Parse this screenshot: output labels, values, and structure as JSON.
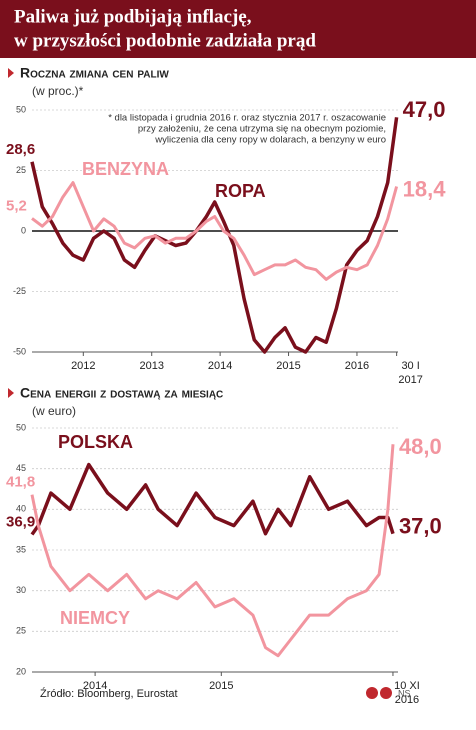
{
  "header": {
    "title": [
      "Paliwa już podbijają inflację,",
      "w przyszłości podobnie zadziała prąd"
    ]
  },
  "chart_data": [
    {
      "type": "line",
      "title": "Roczna zmiana cen paliw",
      "subtitle": "(w proc.)*",
      "note": [
        "* dla listopada i grudnia 2016 r. oraz stycznia 2017 r. oszacowanie",
        "przy założeniu, że cena utrzyma się na obecnym poziomie,",
        "wyliczenia dla ceny ropy w dolarach, a benzyny w euro"
      ],
      "x": [
        2011.75,
        2011.9,
        2012.05,
        2012.2,
        2012.35,
        2012.5,
        2012.65,
        2012.8,
        2012.95,
        2013.1,
        2013.25,
        2013.4,
        2013.55,
        2013.7,
        2013.85,
        2014.0,
        2014.15,
        2014.3,
        2014.42,
        2014.55,
        2014.7,
        2014.85,
        2015.0,
        2015.15,
        2015.3,
        2015.45,
        2015.6,
        2015.75,
        2015.9,
        2016.05,
        2016.2,
        2016.35,
        2016.5,
        2016.65,
        2016.8,
        2016.95,
        2017.08
      ],
      "xlim": [
        2011.75,
        2017.1
      ],
      "xticks": [
        {
          "value": 2012.5,
          "label": "2012"
        },
        {
          "value": 2013.5,
          "label": "2013"
        },
        {
          "value": 2014.5,
          "label": "2014"
        },
        {
          "value": 2015.5,
          "label": "2015"
        },
        {
          "value": 2016.5,
          "label": "2016"
        },
        {
          "value": 2017.08,
          "label": "30 I\n2017"
        }
      ],
      "ylim": [
        -50,
        50
      ],
      "yticks": [
        -50,
        -25,
        0,
        25,
        50
      ],
      "grid": true,
      "series": [
        {
          "name": "ROPA",
          "color": "#7a0f1c",
          "values": [
            28.6,
            10,
            3,
            -5,
            -10,
            -12,
            -3,
            0,
            -3,
            -12,
            -15,
            -8,
            -2,
            -4,
            -6,
            -5,
            0,
            6,
            12,
            4,
            -6,
            -28,
            -45,
            -50,
            -44,
            -40,
            -48,
            -50,
            -44,
            -46,
            -32,
            -14,
            -8,
            -4,
            6,
            20,
            47
          ],
          "value_labels": [
            "28,6",
            null,
            null,
            null,
            null,
            null,
            null,
            null,
            null,
            null,
            null,
            null,
            null,
            null,
            null,
            null,
            null,
            null,
            null,
            null,
            null,
            null,
            null,
            null,
            null,
            null,
            null,
            null,
            null,
            null,
            null,
            null,
            null,
            null,
            null,
            null,
            "47,0"
          ]
        },
        {
          "name": "BENZYNA",
          "color": "#f2959f",
          "values": [
            5.2,
            2,
            6,
            14,
            20,
            10,
            0,
            5,
            2,
            -5,
            -7,
            -3,
            -2,
            -5,
            -3,
            -3,
            0,
            4,
            6,
            0,
            -3,
            -10,
            -18,
            -16,
            -14,
            -14,
            -12,
            -15,
            -16,
            -20,
            -17,
            -15,
            -16,
            -14,
            -6,
            5,
            18.4
          ],
          "value_labels": [
            "5,2",
            null,
            null,
            null,
            null,
            null,
            null,
            null,
            null,
            null,
            null,
            null,
            null,
            null,
            null,
            null,
            null,
            null,
            null,
            null,
            null,
            null,
            null,
            null,
            null,
            null,
            null,
            null,
            null,
            null,
            null,
            null,
            null,
            null,
            null,
            null,
            "18,4"
          ]
        }
      ]
    },
    {
      "type": "line",
      "title": "Cena energii z dostawą za miesiąc",
      "subtitle": "(w euro)",
      "x": [
        2014.0,
        2014.05,
        2014.15,
        2014.3,
        2014.45,
        2014.6,
        2014.75,
        2014.9,
        2015.0,
        2015.15,
        2015.3,
        2015.45,
        2015.6,
        2015.75,
        2015.85,
        2015.95,
        2016.05,
        2016.2,
        2016.35,
        2016.5,
        2016.65,
        2016.75,
        2016.82,
        2016.86
      ],
      "xlim": [
        2014.0,
        2016.9
      ],
      "xticks": [
        {
          "value": 2014.5,
          "label": "2014"
        },
        {
          "value": 2015.5,
          "label": "2015"
        },
        {
          "value": 2016.86,
          "label": "10 XI\n2016"
        }
      ],
      "ylim": [
        20,
        50
      ],
      "yticks": [
        20,
        25,
        30,
        35,
        40,
        45,
        50
      ],
      "grid": true,
      "series": [
        {
          "name": "POLSKA",
          "color": "#7a0f1c",
          "values": [
            36.9,
            38,
            42,
            40,
            45.5,
            42,
            40,
            43,
            40,
            38,
            42,
            39,
            38,
            41,
            37,
            40,
            38,
            44,
            40,
            41,
            38,
            39,
            39,
            37
          ],
          "value_labels": [
            "36,9",
            null,
            null,
            null,
            null,
            null,
            null,
            null,
            null,
            null,
            null,
            null,
            null,
            null,
            null,
            null,
            null,
            null,
            null,
            null,
            null,
            null,
            null,
            "37,0"
          ]
        },
        {
          "name": "NIEMCY",
          "color": "#f2959f",
          "values": [
            41.8,
            38,
            33,
            30,
            32,
            30,
            32,
            29,
            30,
            29,
            31,
            28,
            29,
            27,
            23,
            22,
            24,
            27,
            27,
            29,
            30,
            32,
            40,
            48
          ],
          "value_labels": [
            "41,8",
            null,
            null,
            null,
            null,
            null,
            null,
            null,
            null,
            null,
            null,
            null,
            null,
            null,
            null,
            null,
            null,
            null,
            null,
            null,
            null,
            null,
            null,
            "48,0"
          ]
        }
      ]
    }
  ],
  "source": "Źródło: Bloomberg, Eurostat",
  "credit": "NS"
}
